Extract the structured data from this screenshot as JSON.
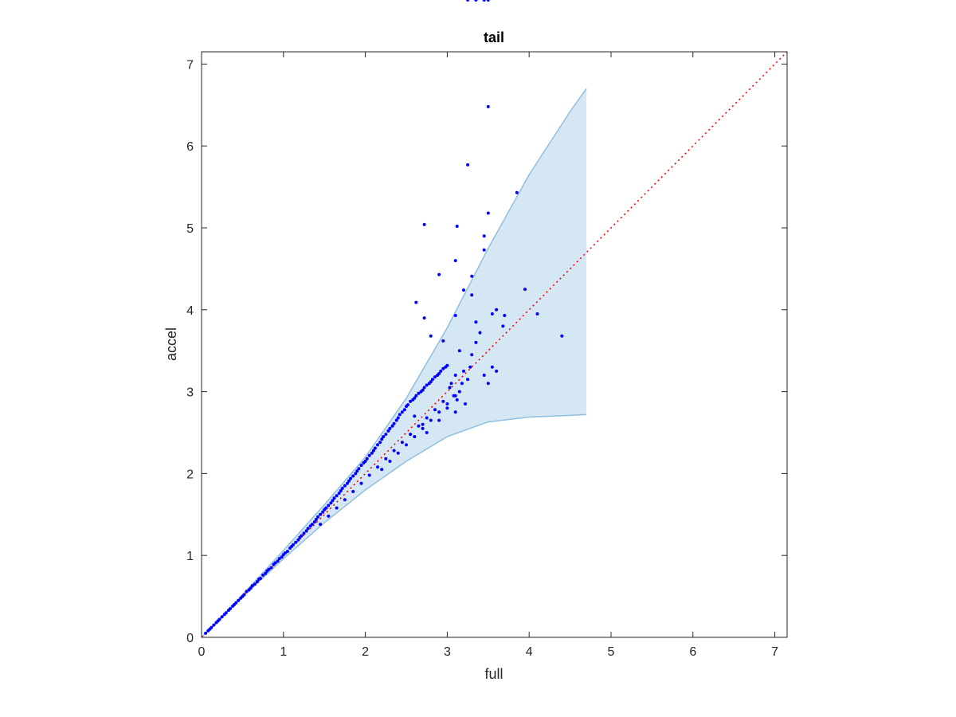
{
  "chart_data": {
    "type": "scatter",
    "title": "tail",
    "xlabel": "full",
    "ylabel": "accel",
    "xlim": [
      0,
      7.15
    ],
    "ylim": [
      0,
      7.15
    ],
    "xticks": [
      "0",
      "1",
      "2",
      "3",
      "4",
      "5",
      "6",
      "7"
    ],
    "yticks": [
      "0",
      "1",
      "2",
      "3",
      "4",
      "5",
      "6",
      "7"
    ],
    "grid": false,
    "colors": {
      "points": "#0000ff",
      "band_fill": "#d6e7f4",
      "band_edge": "#8fbfe0",
      "reference_line": "#ff0000",
      "axes": "#262626"
    },
    "reference_line": {
      "style": "dotted",
      "from": [
        0,
        0
      ],
      "to": [
        7.15,
        7.15
      ]
    },
    "band": {
      "x": [
        0,
        0.5,
        1.0,
        1.5,
        2.0,
        2.5,
        3.0,
        3.5,
        4.0,
        4.5,
        4.7
      ],
      "upper": [
        0,
        0.52,
        1.06,
        1.62,
        2.2,
        2.92,
        3.78,
        4.75,
        5.65,
        6.42,
        6.7
      ],
      "lower": [
        0,
        0.49,
        0.96,
        1.4,
        1.8,
        2.15,
        2.45,
        2.63,
        2.69,
        2.71,
        2.72
      ]
    },
    "points_x": [
      0.05,
      0.08,
      0.1,
      0.12,
      0.15,
      0.18,
      0.2,
      0.22,
      0.25,
      0.28,
      0.3,
      0.33,
      0.35,
      0.38,
      0.4,
      0.42,
      0.45,
      0.48,
      0.5,
      0.52,
      0.55,
      0.58,
      0.6,
      0.62,
      0.65,
      0.68,
      0.7,
      0.72,
      0.75,
      0.78,
      0.8,
      0.82,
      0.85,
      0.88,
      0.9,
      0.93,
      0.95,
      0.98,
      1.0,
      1.02,
      1.05,
      1.08,
      1.1,
      1.12,
      1.15,
      1.18,
      1.2,
      1.22,
      1.25,
      1.28,
      1.3,
      1.33,
      1.35,
      1.38,
      1.4,
      1.42,
      1.45,
      1.48,
      1.5,
      1.52,
      1.55,
      1.58,
      1.6,
      1.62,
      1.65,
      1.68,
      1.7,
      1.72,
      1.75,
      1.78,
      1.8,
      1.82,
      1.85,
      1.88,
      1.9,
      1.92,
      1.95,
      1.98,
      2.0,
      2.02,
      2.05,
      2.08,
      2.1,
      2.12,
      2.15,
      2.18,
      2.2,
      2.22,
      2.25,
      2.28,
      2.3,
      2.33,
      2.35,
      2.38,
      2.4,
      2.42,
      2.45,
      2.48,
      2.5,
      2.52,
      2.55,
      2.58,
      2.6,
      2.62,
      2.65,
      2.68,
      2.7,
      2.72,
      2.75,
      2.78,
      2.8,
      2.82,
      2.85,
      2.88,
      2.9,
      2.92,
      2.95,
      2.98,
      3.0,
      3.03,
      3.05,
      3.08,
      3.1,
      3.12,
      3.15,
      3.18,
      3.2,
      3.22,
      3.25,
      3.28,
      3.3,
      3.35,
      3.4,
      3.45,
      3.5,
      3.55,
      3.6,
      1.45,
      1.55,
      1.65,
      1.75,
      1.85,
      1.95,
      2.05,
      2.15,
      2.25,
      2.35,
      2.45,
      2.55,
      2.65,
      2.75,
      2.85,
      2.95,
      2.7,
      2.6,
      2.5,
      2.4,
      2.3,
      2.2,
      2.9,
      3.0,
      3.1,
      2.8,
      2.6,
      2.7,
      2.75,
      2.9,
      3.0,
      3.1,
      3.5,
      3.25,
      3.85,
      3.5,
      2.72,
      3.12,
      3.45,
      3.45,
      3.1,
      2.9,
      3.3,
      3.6,
      3.7,
      3.1,
      3.2,
      2.62,
      2.72,
      2.8,
      3.3,
      4.1,
      3.95,
      4.4,
      3.35,
      3.55,
      3.68,
      2.95,
      3.15,
      3.25,
      3.35,
      3.5,
      3.45
    ],
    "points_y": [
      0.05,
      0.08,
      0.1,
      0.12,
      0.15,
      0.18,
      0.2,
      0.22,
      0.25,
      0.28,
      0.3,
      0.33,
      0.35,
      0.38,
      0.4,
      0.42,
      0.45,
      0.48,
      0.5,
      0.52,
      0.56,
      0.58,
      0.6,
      0.63,
      0.65,
      0.68,
      0.71,
      0.72,
      0.76,
      0.78,
      0.81,
      0.83,
      0.85,
      0.89,
      0.91,
      0.93,
      0.96,
      0.98,
      1.01,
      1.03,
      1.05,
      1.09,
      1.11,
      1.13,
      1.16,
      1.19,
      1.22,
      1.24,
      1.27,
      1.3,
      1.33,
      1.36,
      1.38,
      1.41,
      1.44,
      1.47,
      1.5,
      1.53,
      1.56,
      1.58,
      1.61,
      1.64,
      1.67,
      1.7,
      1.73,
      1.76,
      1.79,
      1.82,
      1.85,
      1.88,
      1.91,
      1.94,
      1.97,
      2.0,
      2.03,
      2.06,
      2.1,
      2.13,
      2.15,
      2.18,
      2.22,
      2.25,
      2.28,
      2.31,
      2.35,
      2.38,
      2.42,
      2.45,
      2.48,
      2.52,
      2.55,
      2.58,
      2.61,
      2.65,
      2.68,
      2.72,
      2.75,
      2.78,
      2.82,
      2.84,
      2.88,
      2.9,
      2.92,
      2.95,
      2.98,
      3.0,
      3.02,
      3.05,
      3.08,
      3.1,
      3.12,
      3.15,
      3.18,
      3.2,
      3.22,
      3.25,
      3.28,
      3.3,
      3.32,
      3.05,
      3.1,
      2.95,
      3.2,
      2.9,
      3.0,
      3.1,
      3.25,
      2.85,
      3.15,
      3.3,
      3.45,
      3.6,
      3.72,
      3.2,
      3.1,
      3.3,
      3.25,
      1.38,
      1.48,
      1.58,
      1.68,
      1.78,
      1.88,
      1.98,
      2.08,
      2.18,
      2.28,
      2.38,
      2.48,
      2.58,
      2.68,
      2.78,
      2.88,
      2.55,
      2.45,
      2.35,
      2.25,
      2.15,
      2.05,
      2.75,
      2.85,
      2.95,
      2.65,
      2.7,
      2.6,
      2.5,
      2.65,
      2.8,
      2.75,
      6.48,
      5.77,
      5.43,
      5.18,
      5.04,
      5.02,
      4.9,
      4.73,
      4.6,
      4.43,
      4.41,
      4.0,
      3.93,
      3.93,
      4.24,
      4.09,
      3.9,
      3.68,
      4.18,
      3.95,
      4.25,
      3.68,
      3.85,
      3.95,
      3.8,
      3.62,
      3.5
    ]
  }
}
